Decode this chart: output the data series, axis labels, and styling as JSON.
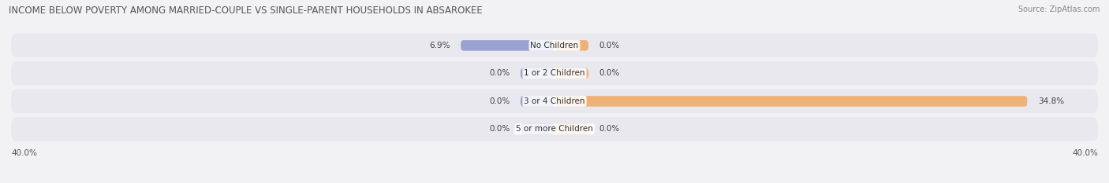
{
  "title": "INCOME BELOW POVERTY AMONG MARRIED-COUPLE VS SINGLE-PARENT HOUSEHOLDS IN ABSAROKEE",
  "source": "Source: ZipAtlas.com",
  "categories": [
    "No Children",
    "1 or 2 Children",
    "3 or 4 Children",
    "5 or more Children"
  ],
  "married_values": [
    6.9,
    0.0,
    0.0,
    0.0
  ],
  "single_values": [
    0.0,
    0.0,
    34.8,
    0.0
  ],
  "x_max": 40.0,
  "married_color": "#8b96cc",
  "single_color": "#f0a864",
  "row_bg_color": "#e8e8ee",
  "bar_height": 0.38,
  "min_bar_width": 2.5,
  "figsize": [
    14.06,
    2.33
  ],
  "dpi": 100,
  "title_fontsize": 8.5,
  "label_fontsize": 7.5,
  "cat_fontsize": 7.5,
  "tick_fontsize": 7.5,
  "source_fontsize": 7
}
